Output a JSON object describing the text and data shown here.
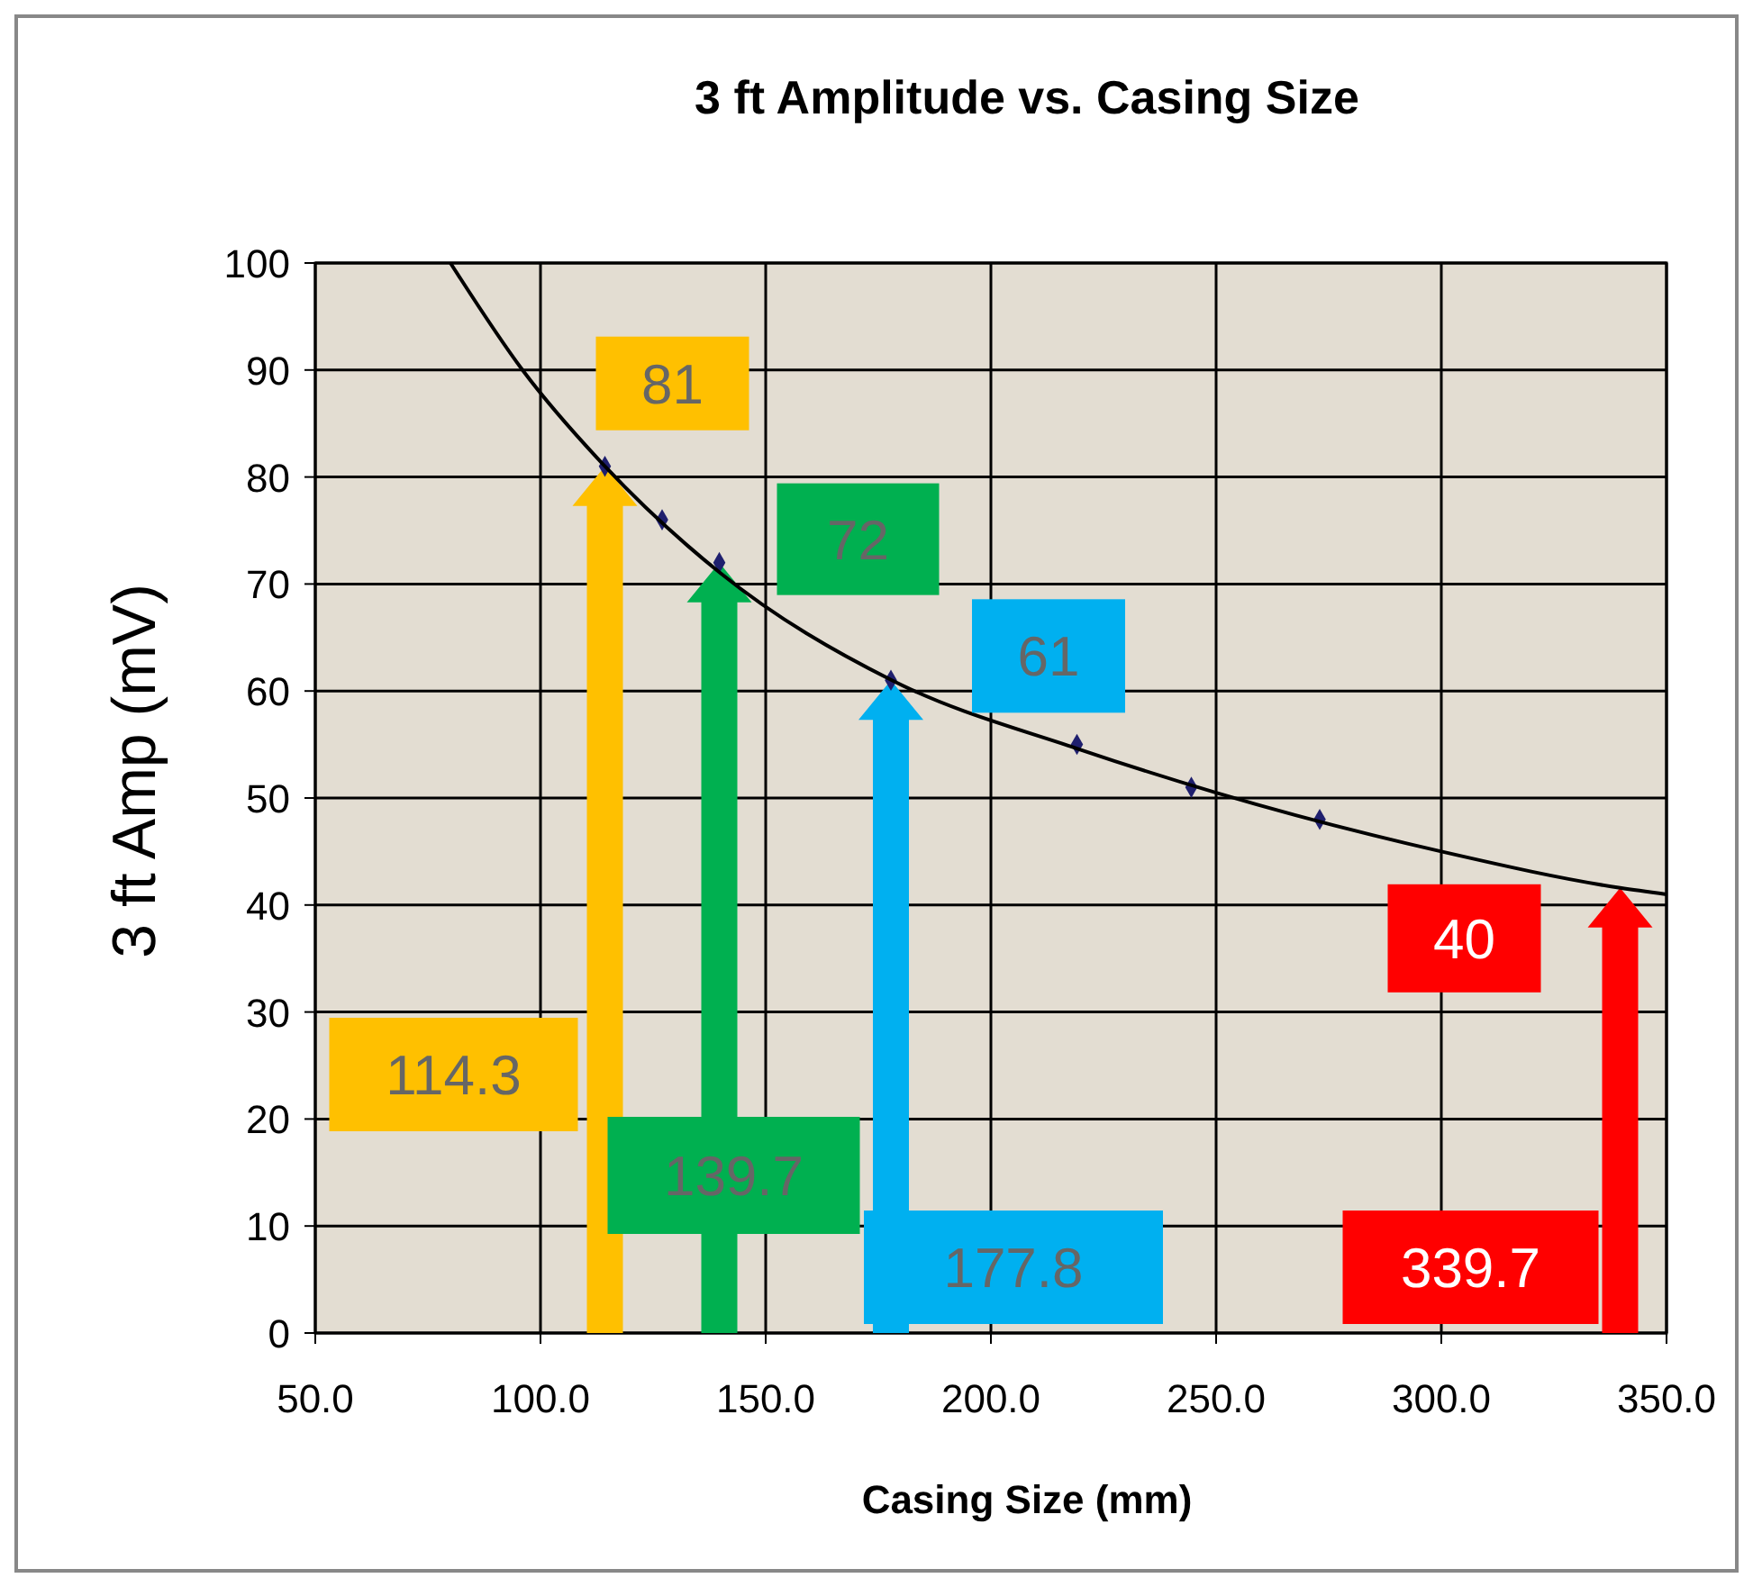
{
  "chart_data": {
    "type": "scatter",
    "title": "3 ft Amplitude vs. Casing Size",
    "xlabel": "Casing Size (mm)",
    "ylabel": "3 ft  Amp (mV)",
    "xlim": [
      50,
      350
    ],
    "xticks": [
      {
        "value": 50,
        "label": "50.0"
      },
      {
        "value": 100,
        "label": "100.0"
      },
      {
        "value": 150,
        "label": "150.0"
      },
      {
        "value": 200,
        "label": "200.0"
      },
      {
        "value": 250,
        "label": "250.0"
      },
      {
        "value": 300,
        "label": "300.0"
      },
      {
        "value": 350,
        "label": "350.0"
      }
    ],
    "ylim": [
      0,
      100
    ],
    "yticks": [
      0,
      10,
      20,
      30,
      40,
      50,
      60,
      70,
      80,
      90,
      100
    ],
    "grid": true,
    "marker": "diamond",
    "series": [
      {
        "color": "#1f1f6e",
        "x": [
          114.3,
          127,
          139.7,
          177.8,
          219.1,
          244.5,
          273
        ],
        "values": [
          81,
          76,
          72,
          61,
          55,
          51,
          48
        ]
      },
      {
        "type": "line",
        "marker": "none",
        "color": "#000000",
        "x": [
          80,
          96,
          114.3,
          140,
          178,
          220,
          250,
          300,
          339.7,
          350
        ],
        "values": [
          100,
          90,
          81,
          71,
          61,
          54.5,
          50.5,
          45,
          41.6,
          41
        ]
      }
    ],
    "annotations": [
      {
        "text": "81",
        "x": 114.3,
        "y": 81
      },
      "114.3",
      {
        "text": "72",
        "x": 139.7,
        "y": 72
      },
      "139.7",
      {
        "text": "61",
        "x": 177.8,
        "y": 61
      },
      "177.8",
      {
        "text": "40",
        "x": 339.7,
        "y": 41.6
      },
      "339.7"
    ]
  }
}
